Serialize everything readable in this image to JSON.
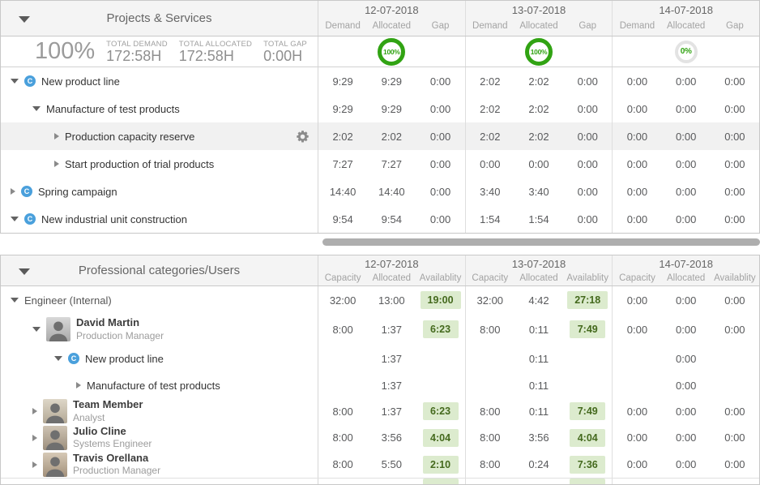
{
  "icons": {
    "project_letter": "C"
  },
  "colors": {
    "accent_green": "#31a313",
    "badge_bg": "#dcebce",
    "badge_text": "#44691d",
    "project_blue": "#4aa0dc"
  },
  "top_panel": {
    "title": "Projects & Services",
    "summary": {
      "percent": "100%",
      "totals": [
        {
          "label": "TOTAL DEMAND",
          "value": "172:58H"
        },
        {
          "label": "TOTAL ALLOCATED",
          "value": "172:58H"
        },
        {
          "label": "TOTAL GAP",
          "value": "0:00H"
        }
      ],
      "day_allocation_percents": [
        "100%",
        "100%",
        "0%"
      ]
    },
    "date_groups": [
      {
        "date": "12-07-2018",
        "columns": [
          "Demand",
          "Allocated",
          "Gap"
        ]
      },
      {
        "date": "13-07-2018",
        "columns": [
          "Demand",
          "Allocated",
          "Gap"
        ]
      },
      {
        "date": "14-07-2018",
        "columns": [
          "Demand",
          "Allocated",
          "Gap"
        ]
      }
    ],
    "rows": [
      {
        "label": "New product line",
        "level": 0,
        "arrow": "expanded",
        "icon": "project",
        "gear": false,
        "highlight": false,
        "values": [
          "9:29",
          "9:29",
          "0:00",
          "2:02",
          "2:02",
          "0:00",
          "0:00",
          "0:00",
          "0:00"
        ]
      },
      {
        "label": "Manufacture of test products",
        "level": 1,
        "arrow": "expanded",
        "icon": "none",
        "gear": false,
        "highlight": false,
        "values": [
          "9:29",
          "9:29",
          "0:00",
          "2:02",
          "2:02",
          "0:00",
          "0:00",
          "0:00",
          "0:00"
        ]
      },
      {
        "label": "Production capacity reserve",
        "level": 2,
        "arrow": "collapsed",
        "icon": "none",
        "gear": true,
        "highlight": true,
        "values": [
          "2:02",
          "2:02",
          "0:00",
          "2:02",
          "2:02",
          "0:00",
          "0:00",
          "0:00",
          "0:00"
        ]
      },
      {
        "label": "Start production of trial products",
        "level": 2,
        "arrow": "collapsed",
        "icon": "none",
        "gear": false,
        "highlight": false,
        "values": [
          "7:27",
          "7:27",
          "0:00",
          "0:00",
          "0:00",
          "0:00",
          "0:00",
          "0:00",
          "0:00"
        ]
      },
      {
        "label": "Spring campaign",
        "level": 0,
        "arrow": "collapsed",
        "icon": "project",
        "gear": false,
        "highlight": false,
        "values": [
          "14:40",
          "14:40",
          "0:00",
          "3:40",
          "3:40",
          "0:00",
          "0:00",
          "0:00",
          "0:00"
        ]
      },
      {
        "label": "New industrial unit construction",
        "level": 0,
        "arrow": "expanded",
        "icon": "project",
        "gear": false,
        "highlight": false,
        "values": [
          "9:54",
          "9:54",
          "0:00",
          "1:54",
          "1:54",
          "0:00",
          "0:00",
          "0:00",
          "0:00"
        ]
      }
    ]
  },
  "bottom_panel": {
    "title": "Professional categories/Users",
    "date_groups": [
      {
        "date": "12-07-2018",
        "columns": [
          "Capacity",
          "Allocated",
          "Availablity"
        ]
      },
      {
        "date": "13-07-2018",
        "columns": [
          "Capacity",
          "Allocated",
          "Availablity"
        ]
      },
      {
        "date": "14-07-2018",
        "columns": [
          "Capacity",
          "Allocated",
          "Availablity"
        ]
      }
    ],
    "rows": [
      {
        "kind": "category",
        "label": "Engineer (Internal)",
        "level": 0,
        "arrow": "expanded",
        "values": [
          "32:00",
          "13:00",
          "19:00",
          "32:00",
          "4:42",
          "27:18",
          "0:00",
          "0:00",
          "0:00"
        ],
        "badge_cols": [
          2,
          5
        ]
      },
      {
        "kind": "user",
        "name": "David Martin",
        "role": "Production Manager",
        "level": 1,
        "arrow": "expanded",
        "values": [
          "8:00",
          "1:37",
          "6:23",
          "8:00",
          "0:11",
          "7:49",
          "0:00",
          "0:00",
          "0:00"
        ],
        "badge_cols": [
          2,
          5
        ]
      },
      {
        "kind": "project",
        "label": "New product line",
        "level": 2,
        "arrow": "expanded",
        "values": [
          "",
          "1:37",
          "",
          "",
          "0:11",
          "",
          "",
          "0:00",
          ""
        ],
        "badge_cols": []
      },
      {
        "kind": "task",
        "label": "Manufacture of test products",
        "level": 3,
        "arrow": "collapsed",
        "values": [
          "",
          "1:37",
          "",
          "",
          "0:11",
          "",
          "",
          "0:00",
          ""
        ],
        "badge_cols": []
      },
      {
        "kind": "user",
        "name": "Team Member",
        "role": "Analyst",
        "level": 1,
        "arrow": "collapsed",
        "values": [
          "8:00",
          "1:37",
          "6:23",
          "8:00",
          "0:11",
          "7:49",
          "0:00",
          "0:00",
          "0:00"
        ],
        "badge_cols": [
          2,
          5
        ]
      },
      {
        "kind": "user",
        "name": "Julio Cline",
        "role": "Systems Engineer",
        "level": 1,
        "arrow": "collapsed",
        "values": [
          "8:00",
          "3:56",
          "4:04",
          "8:00",
          "3:56",
          "4:04",
          "0:00",
          "0:00",
          "0:00"
        ],
        "badge_cols": [
          2,
          5
        ]
      },
      {
        "kind": "user",
        "name": "Travis Orellana",
        "role": "Production Manager",
        "level": 1,
        "arrow": "collapsed",
        "values": [
          "8:00",
          "5:50",
          "2:10",
          "8:00",
          "0:24",
          "7:36",
          "0:00",
          "0:00",
          "0:00"
        ],
        "badge_cols": [
          2,
          5
        ]
      }
    ],
    "partial_row_badge_cols": [
      2,
      5
    ]
  }
}
